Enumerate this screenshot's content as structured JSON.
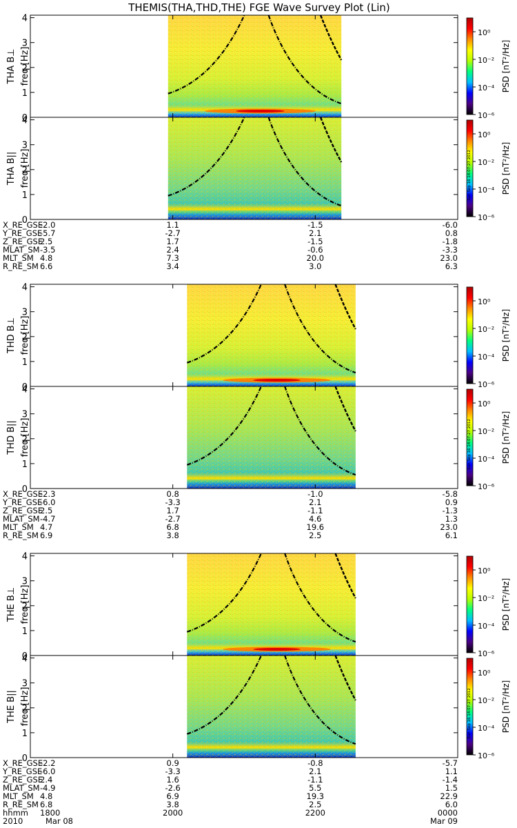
{
  "title": "THEMIS(THA,THD,THE) FGE Wave Survey Plot (Lin)",
  "colors": {
    "colormap": [
      "#000000",
      "#4b0082",
      "#0000ff",
      "#00bfff",
      "#00ff7f",
      "#b7ff00",
      "#ffff00",
      "#ff8c00",
      "#ff0000",
      "#b00000"
    ],
    "background": "#ffffff",
    "curve": "#000000"
  },
  "colorbar": {
    "label": "PSD [nT²/Hz]",
    "ticks": [
      "10⁰",
      "10⁻²",
      "10⁻⁴",
      "10⁻⁶"
    ],
    "timestamp": "Sun Sep 16 14:07:27 2012"
  },
  "probes": [
    {
      "id": "tha",
      "panels": [
        {
          "component": "perp",
          "ylabel": "THA B⊥"
        },
        {
          "component": "par",
          "ylabel": "THA B||"
        }
      ],
      "data_start": "2010-03-08 19:56",
      "data_end": "2010-03-08 22:22",
      "ephemeris": [
        {
          "name": "X_RE_GSE",
          "values": [
            "-2.0",
            "1.1",
            "-1.5",
            "-6.0"
          ]
        },
        {
          "name": "Y_RE_GSE",
          "values": [
            "-5.7",
            "-2.7",
            "2.1",
            "0.8"
          ]
        },
        {
          "name": "Z_RE_GSE",
          "values": [
            "2.5",
            "1.7",
            "-1.5",
            "-1.8"
          ]
        },
        {
          "name": "MLAT_SM",
          "values": [
            "-3.5",
            "2.4",
            "-0.6",
            "-3.3"
          ]
        },
        {
          "name": "MLT_SM",
          "values": [
            "4.8",
            "7.3",
            "20.0",
            "23.0"
          ]
        },
        {
          "name": "R_RE_SM",
          "values": [
            "6.6",
            "3.4",
            "3.0",
            "6.3"
          ]
        }
      ]
    },
    {
      "id": "thd",
      "panels": [
        {
          "component": "perp",
          "ylabel": "THD B⊥"
        },
        {
          "component": "par",
          "ylabel": "THD B||"
        }
      ],
      "data_start": "2010-03-08 20:12",
      "data_end": "2010-03-08 22:34",
      "ephemeris": [
        {
          "name": "X_RE_GSE",
          "values": [
            "-2.3",
            "0.8",
            "-1.0",
            "-5.8"
          ]
        },
        {
          "name": "Y_RE_GSE",
          "values": [
            "-6.0",
            "-3.3",
            "2.1",
            "0.9"
          ]
        },
        {
          "name": "Z_RE_GSE",
          "values": [
            "2.5",
            "1.7",
            "-1.1",
            "-1.3"
          ]
        },
        {
          "name": "MLAT_SM",
          "values": [
            "-4.7",
            "-2.7",
            "4.6",
            "1.3"
          ]
        },
        {
          "name": "MLT_SM",
          "values": [
            "4.7",
            "6.8",
            "19.6",
            "23.0"
          ]
        },
        {
          "name": "R_RE_SM",
          "values": [
            "6.9",
            "3.8",
            "2.5",
            "6.1"
          ]
        }
      ]
    },
    {
      "id": "the",
      "panels": [
        {
          "component": "perp",
          "ylabel": "THE B⊥"
        },
        {
          "component": "par",
          "ylabel": "THE B||"
        }
      ],
      "data_start": "2010-03-08 20:12",
      "data_end": "2010-03-08 22:34",
      "ephemeris": [
        {
          "name": "X_RE_GSE",
          "values": [
            "-2.2",
            "0.9",
            "-0.8",
            "-5.7"
          ]
        },
        {
          "name": "Y_RE_GSE",
          "values": [
            "-6.0",
            "-3.3",
            "2.1",
            "1.1"
          ]
        },
        {
          "name": "Z_RE_GSE",
          "values": [
            "2.4",
            "1.6",
            "-1.1",
            "-1.4"
          ]
        },
        {
          "name": "MLAT_SM",
          "values": [
            "-4.9",
            "-2.6",
            "5.5",
            "1.5"
          ]
        },
        {
          "name": "MLT_SM",
          "values": [
            "4.8",
            "6.9",
            "19.3",
            "22.9"
          ]
        },
        {
          "name": "R_RE_SM",
          "values": [
            "6.8",
            "3.8",
            "2.5",
            "6.0"
          ]
        }
      ]
    }
  ],
  "time_axis": {
    "row_label": "hhmm",
    "ticks": [
      "1800",
      "2000",
      "2200",
      "0000"
    ],
    "year": "2010",
    "date_start": "Mar 08",
    "date_end": "Mar 09"
  },
  "chart_data": {
    "type": "heatmap",
    "title": "THEMIS(THA,THD,THE) FGE Wave Survey Plot (Lin)",
    "x_range": [
      "2010-03-08 18:00",
      "2010-03-09 00:00"
    ],
    "xlabel": "hhmm",
    "ylabel": "freq [Hz]",
    "ylim": [
      0,
      4.1
    ],
    "yticks": [
      0,
      1,
      2,
      3,
      4
    ],
    "color_scale": "log",
    "color_range": [
      1e-06,
      10
    ],
    "colorbar_ticks": [
      1e-06,
      0.0001,
      0.01,
      1
    ],
    "colorbar_label": "PSD [nT²/Hz]",
    "grid": false,
    "legend": "none"
  }
}
